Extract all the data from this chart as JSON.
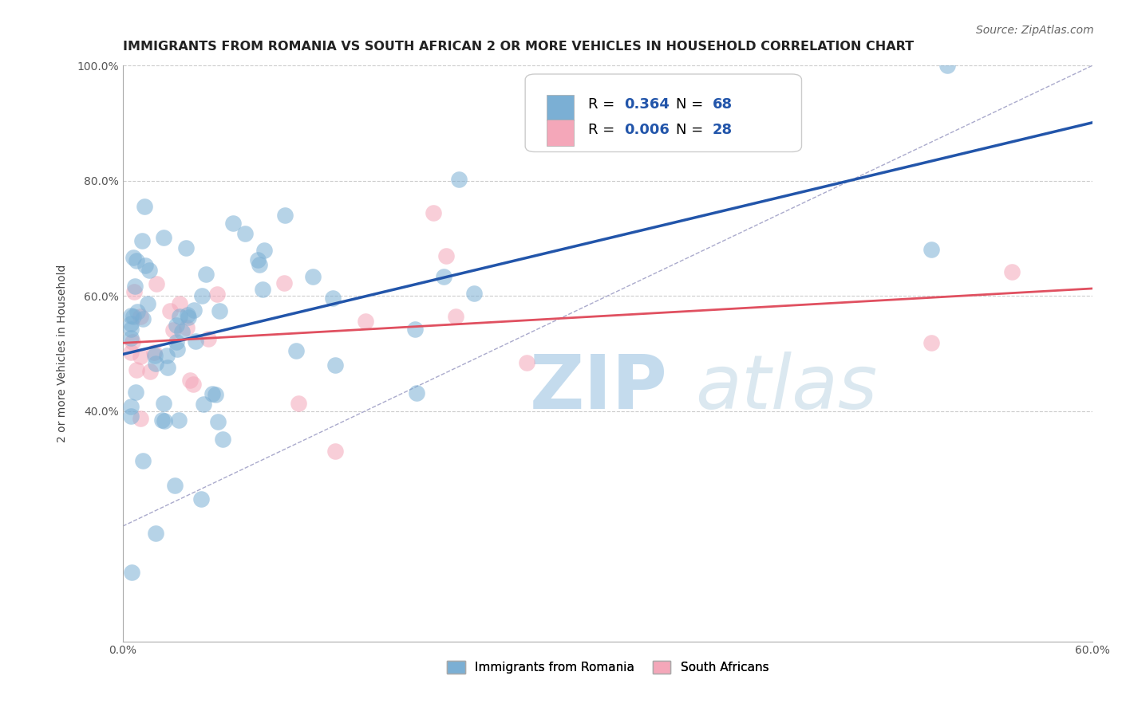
{
  "title": "IMMIGRANTS FROM ROMANIA VS SOUTH AFRICAN 2 OR MORE VEHICLES IN HOUSEHOLD CORRELATION CHART",
  "source": "Source: ZipAtlas.com",
  "ylabel": "2 or more Vehicles in Household",
  "xlim": [
    0.0,
    0.6
  ],
  "ylim": [
    0.0,
    1.0
  ],
  "color_romania": "#7bafd4",
  "color_sa": "#f4a7b9",
  "trend_color_romania": "#2255aa",
  "trend_color_sa": "#e05060",
  "watermark_zip": "ZIP",
  "watermark_atlas": "atlas",
  "r_romania": "0.364",
  "n_romania": "68",
  "r_sa": "0.006",
  "n_sa": "28",
  "legend_bottom_romania": "Immigrants from Romania",
  "legend_bottom_sa": "South Africans"
}
